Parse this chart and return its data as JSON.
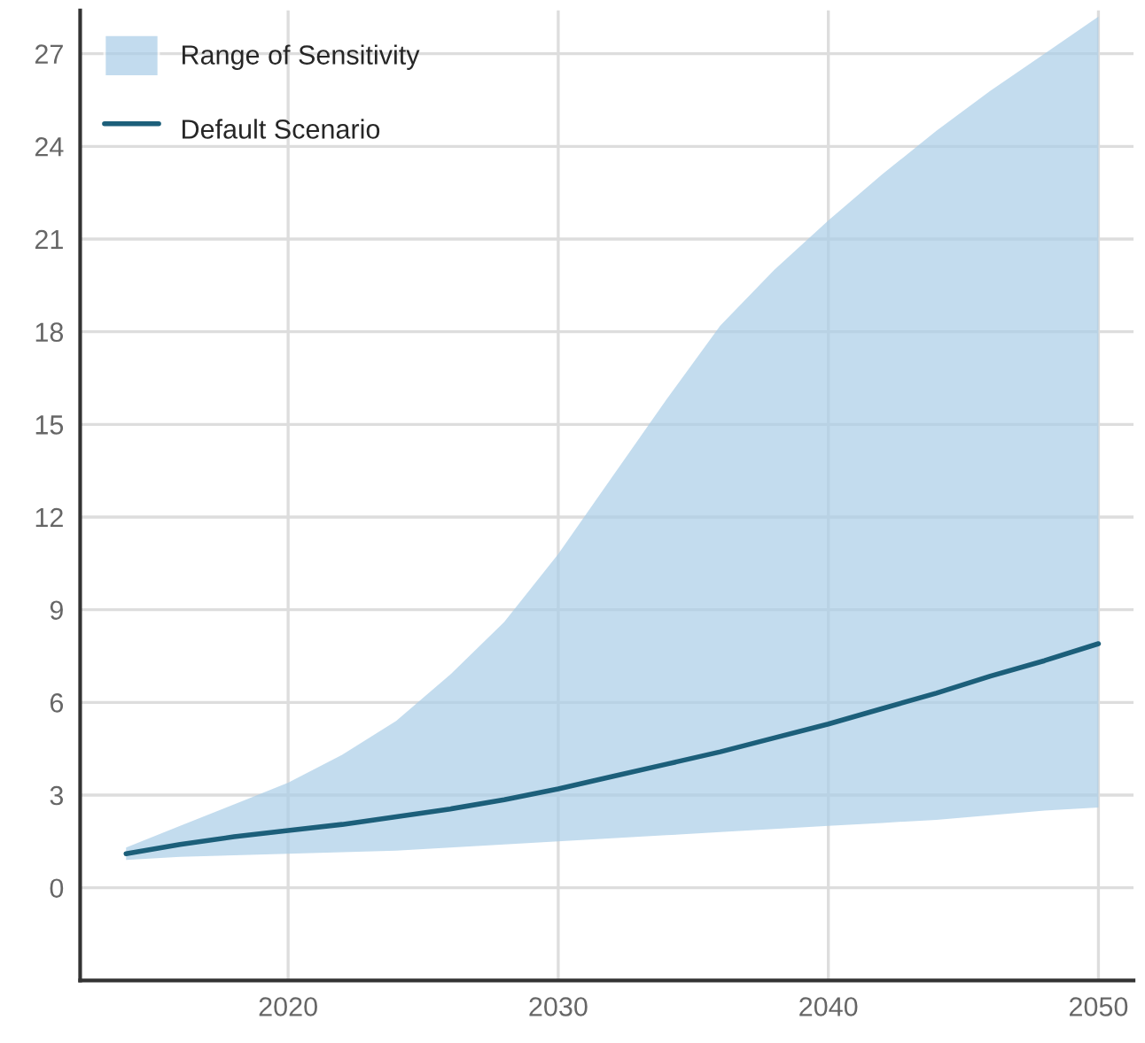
{
  "chart_data": {
    "type": "line",
    "x": [
      2014,
      2016,
      2018,
      2020,
      2022,
      2024,
      2026,
      2028,
      2030,
      2032,
      2034,
      2036,
      2038,
      2040,
      2042,
      2044,
      2046,
      2048,
      2050
    ],
    "series": [
      {
        "type": "area",
        "name": "Range of Sensitivity",
        "color": "#a9cde7",
        "values": [
          null,
          null,
          null,
          null,
          null,
          null,
          null,
          null,
          null,
          null,
          null,
          null,
          null,
          null,
          null,
          null,
          null,
          null,
          null
        ],
        "lower": [
          0.9,
          1.0,
          1.05,
          1.1,
          1.15,
          1.2,
          1.3,
          1.4,
          1.5,
          1.6,
          1.7,
          1.8,
          1.9,
          2.0,
          2.1,
          2.2,
          2.35,
          2.5,
          2.6
        ],
        "upper": [
          1.3,
          2.0,
          2.7,
          3.4,
          4.3,
          5.4,
          6.9,
          8.6,
          10.8,
          13.3,
          15.8,
          18.2,
          20.0,
          21.6,
          23.1,
          24.5,
          25.8,
          27.0,
          28.2
        ]
      },
      {
        "name": "Default Scenario",
        "color": "#1c5f7a",
        "values": [
          1.1,
          1.4,
          1.65,
          1.85,
          2.05,
          2.3,
          2.55,
          2.85,
          3.2,
          3.6,
          4.0,
          4.4,
          4.85,
          5.3,
          5.8,
          6.3,
          6.85,
          7.35,
          7.9
        ]
      }
    ],
    "xlim": [
      2012.3,
      2051.3
    ],
    "xticks": [
      2020,
      2030,
      2040,
      2050
    ],
    "ylim": [
      -3,
      28.4
    ],
    "yticks": [
      0,
      3,
      6,
      9,
      12,
      15,
      18,
      21,
      24,
      27
    ],
    "grid": true,
    "legend": "top left",
    "line_style": "solid",
    "marker": "none"
  }
}
